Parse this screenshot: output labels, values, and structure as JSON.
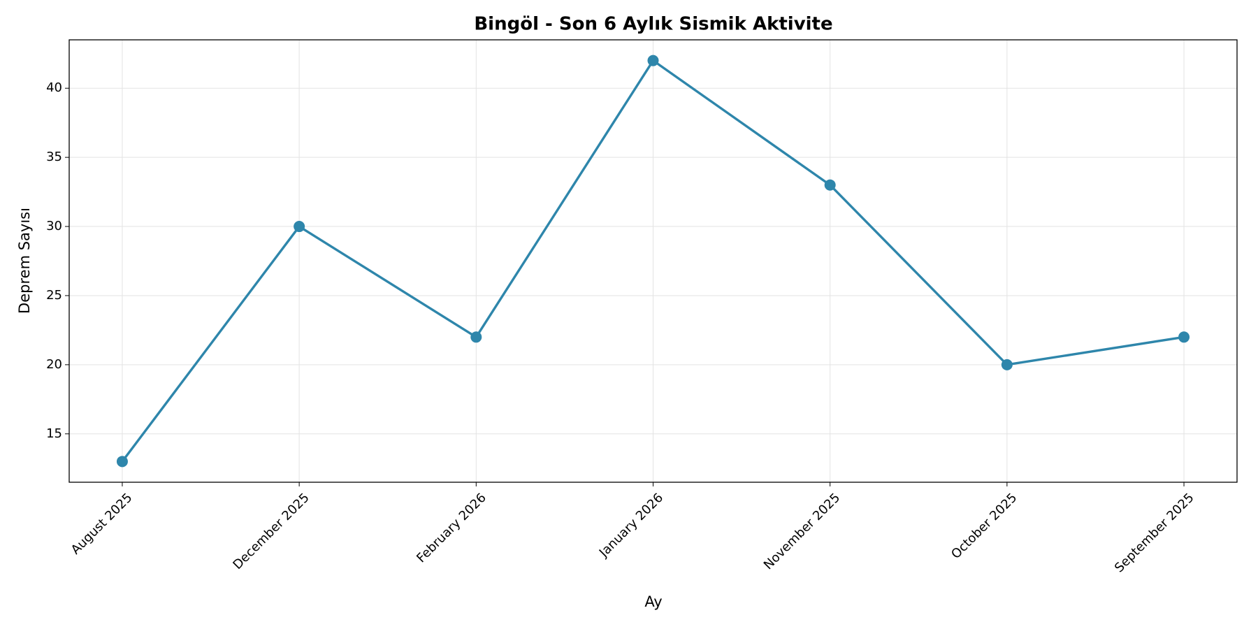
{
  "chart_data": {
    "type": "line",
    "title": "Bingöl - Son 6 Aylık Sismik Aktivite",
    "x_label": "Ay",
    "y_label": "Deprem Sayısı",
    "categories": [
      "August 2025",
      "December 2025",
      "February 2026",
      "January 2026",
      "November 2025",
      "October 2025",
      "September 2025"
    ],
    "values": [
      13,
      30,
      22,
      42,
      33,
      20,
      22
    ],
    "color": "#2e86ab",
    "ylim": [
      11.5,
      43.5
    ],
    "yticks": [
      15,
      20,
      25,
      30,
      35,
      40
    ],
    "grid": true
  }
}
